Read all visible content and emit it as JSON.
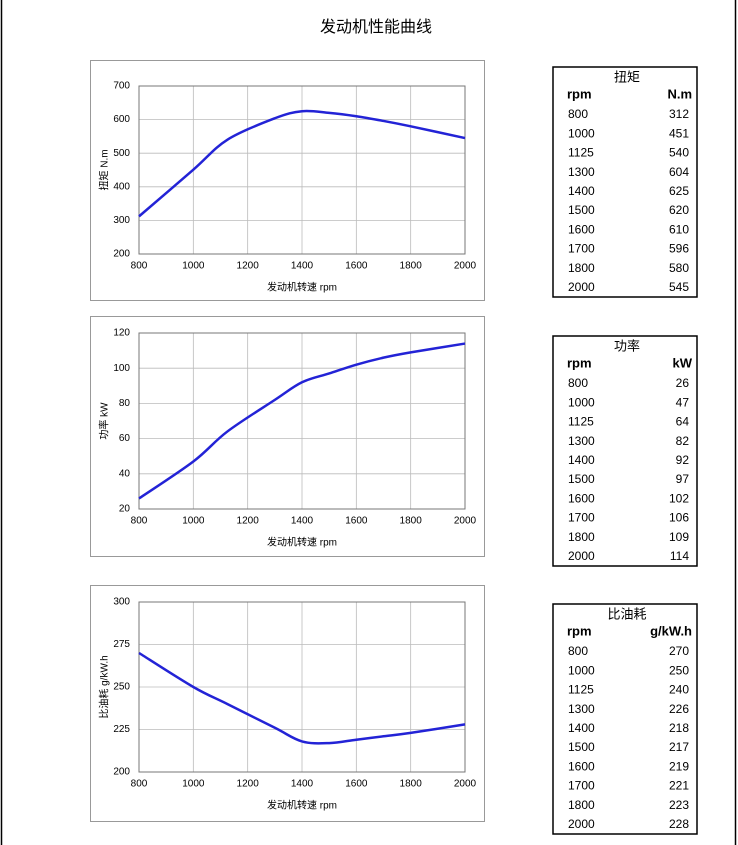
{
  "title": "发动机性能曲线",
  "chart_data": [
    {
      "type": "line",
      "ylabel": "扭矩  N.m",
      "xlabel": "发动机转速  rpm",
      "x": [
        800,
        1000,
        1125,
        1300,
        1400,
        1500,
        1600,
        1700,
        1800,
        2000
      ],
      "series": [
        {
          "color": "#2323d6",
          "values": [
            312,
            451,
            540,
            604,
            625,
            620,
            610,
            596,
            580,
            545
          ]
        }
      ],
      "xlim": [
        800,
        2000
      ],
      "xticks": [
        800,
        1000,
        1200,
        1400,
        1600,
        1800,
        2000
      ],
      "ylim": [
        200,
        700
      ],
      "yticks": [
        200,
        300,
        400,
        500,
        600,
        700
      ],
      "grid": true
    },
    {
      "type": "line",
      "ylabel": "功率  kW",
      "xlabel": "发动机转速  rpm",
      "x": [
        800,
        1000,
        1125,
        1300,
        1400,
        1500,
        1600,
        1700,
        1800,
        2000
      ],
      "series": [
        {
          "color": "#2323d6",
          "values": [
            26,
            47,
            64,
            82,
            92,
            97,
            102,
            106,
            109,
            114
          ]
        }
      ],
      "xlim": [
        800,
        2000
      ],
      "xticks": [
        800,
        1000,
        1200,
        1400,
        1600,
        1800,
        2000
      ],
      "ylim": [
        20,
        120
      ],
      "yticks": [
        20,
        40,
        60,
        80,
        100,
        120
      ],
      "grid": true
    },
    {
      "type": "line",
      "ylabel": "比油耗  g/kW.h",
      "xlabel": "发动机转速  rpm",
      "x": [
        800,
        1000,
        1125,
        1300,
        1400,
        1500,
        1600,
        1700,
        1800,
        2000
      ],
      "series": [
        {
          "color": "#2323d6",
          "values": [
            270,
            250,
            240,
            226,
            218,
            217,
            219,
            221,
            223,
            228
          ]
        }
      ],
      "xlim": [
        800,
        2000
      ],
      "xticks": [
        800,
        1000,
        1200,
        1400,
        1600,
        1800,
        2000
      ],
      "ylim": [
        200,
        300
      ],
      "yticks": [
        200,
        225,
        250,
        275,
        300
      ],
      "grid": true
    }
  ],
  "tables": [
    {
      "title": "扭矩",
      "columns": [
        "rpm",
        "N.m"
      ]
    },
    {
      "title": "功率",
      "columns": [
        "rpm",
        "kW"
      ]
    },
    {
      "title": "比油耗",
      "columns": [
        "rpm",
        "g/kW.h"
      ]
    }
  ]
}
